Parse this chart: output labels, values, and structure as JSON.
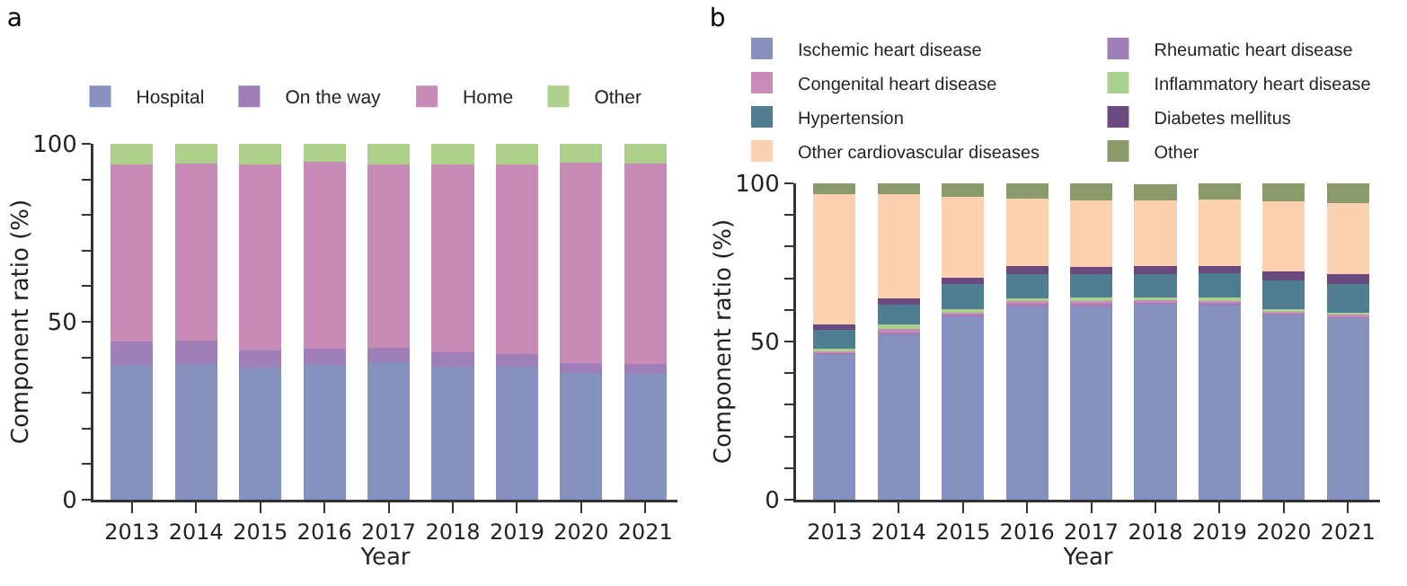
{
  "chart_data": [
    {
      "type": "bar",
      "title": "a",
      "xlabel": "Year",
      "ylabel": "Component ratio (%)",
      "stacked": true,
      "legend": "top",
      "grid": false,
      "categories": [
        "2013",
        "2014",
        "2015",
        "2016",
        "2017",
        "2018",
        "2019",
        "2020",
        "2021"
      ],
      "ylim": [
        0,
        100
      ],
      "yticks": [
        0,
        {
          "value": 10,
          "label": null
        },
        {
          "value": 20,
          "label": null
        },
        {
          "value": 30,
          "label": null
        },
        {
          "value": 40,
          "label": null
        },
        50,
        {
          "value": 60,
          "label": null
        },
        {
          "value": 70,
          "label": null
        },
        {
          "value": 80,
          "label": null
        },
        {
          "value": 90,
          "label": null
        },
        100
      ],
      "series": [
        {
          "name": "Hospital",
          "color": "#8592bf",
          "values": [
            37.9,
            38.2,
            37.0,
            37.9,
            38.7,
            37.4,
            37.3,
            35.6,
            35.4
          ]
        },
        {
          "name": "On the way",
          "color": "#a07fb8",
          "values": [
            6.5,
            6.5,
            4.9,
            4.5,
            4.0,
            4.1,
            3.7,
            2.9,
            2.8
          ]
        },
        {
          "name": "Home",
          "color": "#c88bb8",
          "values": [
            49.7,
            49.7,
            52.2,
            52.5,
            51.4,
            52.6,
            53.3,
            56.2,
            56.2
          ]
        },
        {
          "name": "Other",
          "color": "#add08a",
          "values": [
            5.9,
            5.6,
            5.9,
            5.1,
            5.9,
            5.9,
            5.7,
            5.3,
            5.6
          ]
        }
      ]
    },
    {
      "type": "bar",
      "title": "b",
      "xlabel": "Year",
      "ylabel": "Component ratio (%)",
      "stacked": true,
      "legend": "top",
      "grid": false,
      "categories": [
        "2013",
        "2014",
        "2015",
        "2016",
        "2017",
        "2018",
        "2019",
        "2020",
        "2021"
      ],
      "ylim": [
        0,
        100
      ],
      "yticks": [
        0,
        {
          "value": 10,
          "label": null
        },
        {
          "value": 20,
          "label": null
        },
        {
          "value": 30,
          "label": null
        },
        {
          "value": 40,
          "label": null
        },
        50,
        {
          "value": 60,
          "label": null
        },
        {
          "value": 70,
          "label": null
        },
        {
          "value": 80,
          "label": null
        },
        {
          "value": 90,
          "label": null
        },
        100
      ],
      "series": [
        {
          "name": "Ischemic heart disease",
          "color": "#8592bf",
          "values": [
            45.7,
            51.9,
            57.8,
            60.9,
            60.9,
            61.6,
            61.3,
            58.2,
            57.3
          ]
        },
        {
          "name": "Rheumatic heart disease",
          "color": "#a07fb8",
          "values": [
            0.5,
            1.0,
            0.6,
            0.9,
            0.9,
            0.7,
            0.8,
            0.6,
            0.5
          ]
        },
        {
          "name": "Congenital heart disease",
          "color": "#c98bb9",
          "values": [
            0.8,
            1.0,
            0.6,
            0.9,
            1.0,
            0.8,
            0.8,
            0.6,
            0.6
          ]
        },
        {
          "name": "Inflammatory heart disease",
          "color": "#a9d08e",
          "values": [
            0.8,
            1.5,
            1.1,
            1.0,
            1.2,
            0.9,
            0.9,
            0.7,
            0.6
          ]
        },
        {
          "name": "Hypertension",
          "color": "#4f7d92",
          "values": [
            5.8,
            6.2,
            8.1,
            7.7,
            7.3,
            7.4,
            7.8,
            9.3,
            9.3
          ]
        },
        {
          "name": "Diabetes mellitus",
          "color": "#6a4a7e",
          "values": [
            1.7,
            1.9,
            2.0,
            2.4,
            2.3,
            2.5,
            2.3,
            2.8,
            3.1
          ]
        },
        {
          "name": "Other cardiovascular diseases",
          "color": "#fdd0af",
          "values": [
            41.3,
            33.1,
            25.6,
            21.5,
            21.1,
            20.8,
            21.1,
            22.1,
            22.4
          ]
        },
        {
          "name": "Other",
          "color": "#8a9a6b",
          "values": [
            3.4,
            3.4,
            4.2,
            4.7,
            5.3,
            5.0,
            5.0,
            5.7,
            6.2
          ]
        }
      ]
    }
  ]
}
